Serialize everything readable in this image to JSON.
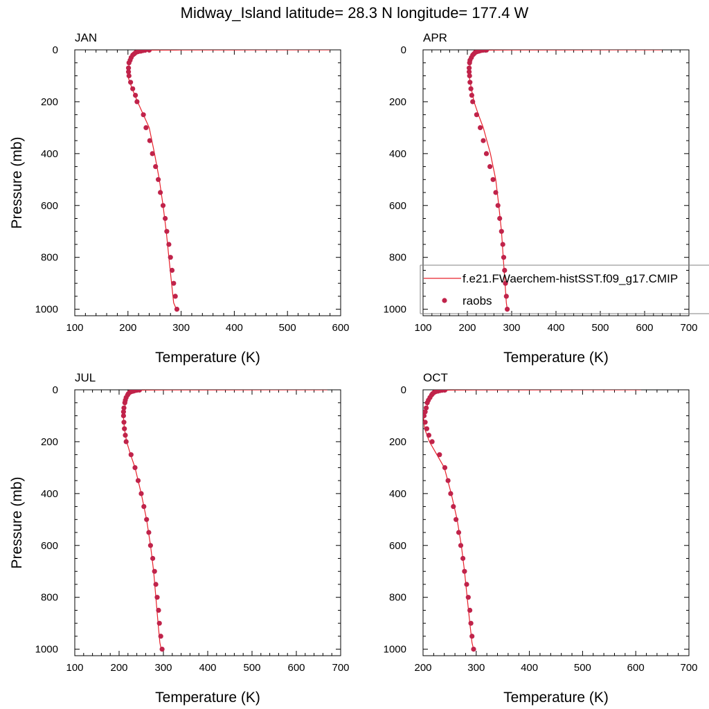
{
  "title": "Midway_Island  latitude= 28.3 N longitude= 177.4 W",
  "colors": {
    "model_line": "#e8202a",
    "obs_marker": "#c0234a",
    "axis": "#000000"
  },
  "legend": {
    "entries": [
      {
        "label": "f.e21.FWaerchem-histSST.f09_g17.CMIP",
        "symbol": "line"
      },
      {
        "label": "raobs",
        "symbol": "marker"
      }
    ]
  },
  "chart_data": [
    {
      "type": "line",
      "panel": "JAN",
      "title": "JAN",
      "xlabel": "Temperature (K)",
      "ylabel": "Pressure (mb)",
      "xlim": [
        100,
        600
      ],
      "ylim": [
        1025,
        0
      ],
      "xticks": [
        "100",
        "200",
        "300",
        "400",
        "500",
        "600"
      ],
      "yticks": [
        "0",
        "200",
        "400",
        "600",
        "800",
        "1000"
      ],
      "series": [
        {
          "name": "f.e21.FWaerchem-histSST.f09_g17.CMIP",
          "kind": "line",
          "temperature": [
            580,
            500,
            400,
            300,
            240,
            226,
            215,
            208,
            203,
            200,
            201,
            208,
            218,
            229,
            240,
            250,
            259,
            266,
            272,
            277,
            282,
            286,
            291
          ],
          "pressure": [
            0.05,
            0.1,
            0.2,
            0.5,
            1,
            3,
            10,
            25,
            50,
            80,
            110,
            150,
            200,
            250,
            300,
            400,
            500,
            600,
            700,
            800,
            900,
            975,
            1000
          ]
        },
        {
          "name": "raobs",
          "kind": "marker",
          "temperature": [
            240,
            232,
            228,
            224,
            219,
            215,
            212,
            209,
            206,
            204,
            202,
            201,
            201,
            202,
            205,
            209,
            214,
            217,
            229,
            234,
            241,
            246,
            252,
            257,
            261,
            266,
            270,
            273,
            277,
            280,
            283,
            286,
            289,
            292
          ],
          "pressure": [
            1,
            2,
            3,
            5,
            7,
            10,
            15,
            20,
            30,
            40,
            50,
            70,
            85,
            100,
            125,
            150,
            175,
            200,
            250,
            300,
            350,
            400,
            450,
            500,
            550,
            600,
            650,
            700,
            750,
            800,
            850,
            900,
            950,
            1000
          ]
        }
      ]
    },
    {
      "type": "line",
      "panel": "APR",
      "title": "APR",
      "xlabel": "Temperature (K)",
      "ylabel": "",
      "xlim": [
        100,
        700
      ],
      "ylim": [
        1025,
        0
      ],
      "xticks": [
        "100",
        "200",
        "300",
        "400",
        "500",
        "600",
        "700"
      ],
      "yticks": [
        "0",
        "200",
        "400",
        "600",
        "800",
        "1000"
      ],
      "series": [
        {
          "name": "f.e21.FWaerchem-histSST.f09_g17.CMIP",
          "kind": "line",
          "temperature": [
            640,
            520,
            400,
            300,
            245,
            230,
            219,
            212,
            207,
            204,
            205,
            209,
            215,
            225,
            236,
            252,
            264,
            271,
            277,
            281,
            285,
            288,
            290
          ],
          "pressure": [
            0.05,
            0.1,
            0.2,
            0.5,
            1,
            3,
            10,
            25,
            50,
            80,
            110,
            150,
            200,
            250,
            300,
            400,
            500,
            600,
            700,
            800,
            900,
            975,
            1000
          ]
        },
        {
          "name": "raobs",
          "kind": "marker",
          "temperature": [
            243,
            235,
            230,
            226,
            222,
            218,
            215,
            212,
            209,
            206,
            205,
            204,
            204,
            205,
            206,
            208,
            210,
            212,
            221,
            229,
            236,
            243,
            251,
            258,
            264,
            269,
            273,
            277,
            280,
            282,
            284,
            286,
            288,
            290
          ],
          "pressure": [
            1,
            2,
            3,
            5,
            7,
            10,
            15,
            20,
            30,
            40,
            50,
            70,
            85,
            100,
            125,
            150,
            175,
            200,
            250,
            300,
            350,
            400,
            450,
            500,
            550,
            600,
            650,
            700,
            750,
            800,
            850,
            900,
            950,
            1000
          ]
        }
      ]
    },
    {
      "type": "line",
      "panel": "JUL",
      "title": "JUL",
      "xlabel": "Temperature (K)",
      "ylabel": "Pressure (mb)",
      "xlim": [
        100,
        700
      ],
      "ylim": [
        1025,
        0
      ],
      "xticks": [
        "100",
        "200",
        "300",
        "400",
        "500",
        "600",
        "700"
      ],
      "yticks": [
        "0",
        "200",
        "400",
        "600",
        "800",
        "1000"
      ],
      "series": [
        {
          "name": "f.e21.FWaerchem-histSST.f09_g17.CMIP",
          "kind": "line",
          "temperature": [
            670,
            560,
            420,
            310,
            250,
            236,
            226,
            220,
            215,
            211,
            210,
            212,
            217,
            226,
            236,
            250,
            262,
            271,
            278,
            283,
            288,
            292,
            295
          ],
          "pressure": [
            0.05,
            0.1,
            0.2,
            0.5,
            1,
            3,
            10,
            25,
            50,
            80,
            110,
            150,
            200,
            250,
            300,
            400,
            500,
            600,
            700,
            800,
            900,
            975,
            1000
          ]
        },
        {
          "name": "raobs",
          "kind": "marker",
          "temperature": [
            246,
            240,
            236,
            232,
            228,
            224,
            221,
            219,
            216,
            214,
            213,
            211,
            210,
            210,
            211,
            212,
            214,
            216,
            227,
            236,
            243,
            250,
            256,
            262,
            267,
            271,
            276,
            280,
            283,
            286,
            289,
            291,
            294,
            297
          ],
          "pressure": [
            1,
            2,
            3,
            5,
            7,
            10,
            15,
            20,
            30,
            40,
            50,
            70,
            85,
            100,
            125,
            150,
            175,
            200,
            250,
            300,
            350,
            400,
            450,
            500,
            550,
            600,
            650,
            700,
            750,
            800,
            850,
            900,
            950,
            1000
          ]
        }
      ]
    },
    {
      "type": "line",
      "panel": "OCT",
      "title": "OCT",
      "xlabel": "Temperature (K)",
      "ylabel": "",
      "xlim": [
        200,
        700
      ],
      "ylim": [
        1025,
        0
      ],
      "xticks": [
        "200",
        "300",
        "400",
        "500",
        "600",
        "700"
      ],
      "yticks": [
        "0",
        "200",
        "400",
        "600",
        "800",
        "1000"
      ],
      "series": [
        {
          "name": "f.e21.FWaerchem-histSST.f09_g17.CMIP",
          "kind": "line",
          "temperature": [
            610,
            500,
            400,
            300,
            250,
            236,
            225,
            217,
            210,
            205,
            201,
            203,
            212,
            226,
            240,
            253,
            264,
            272,
            278,
            283,
            288,
            292,
            295
          ],
          "pressure": [
            0.05,
            0.1,
            0.2,
            0.5,
            1,
            3,
            10,
            25,
            50,
            80,
            110,
            150,
            200,
            250,
            300,
            400,
            500,
            600,
            700,
            800,
            900,
            975,
            1000
          ]
        },
        {
          "name": "raobs",
          "kind": "marker",
          "temperature": [
            241,
            236,
            232,
            228,
            224,
            221,
            218,
            216,
            213,
            210,
            208,
            206,
            204,
            202,
            204,
            207,
            211,
            217,
            231,
            241,
            247,
            252,
            257,
            262,
            267,
            271,
            275,
            278,
            282,
            285,
            288,
            290,
            292,
            295
          ],
          "pressure": [
            1,
            2,
            3,
            5,
            7,
            10,
            15,
            20,
            30,
            40,
            50,
            70,
            85,
            100,
            125,
            150,
            175,
            200,
            250,
            300,
            350,
            400,
            450,
            500,
            550,
            600,
            650,
            700,
            750,
            800,
            850,
            900,
            950,
            1000
          ]
        }
      ]
    }
  ]
}
